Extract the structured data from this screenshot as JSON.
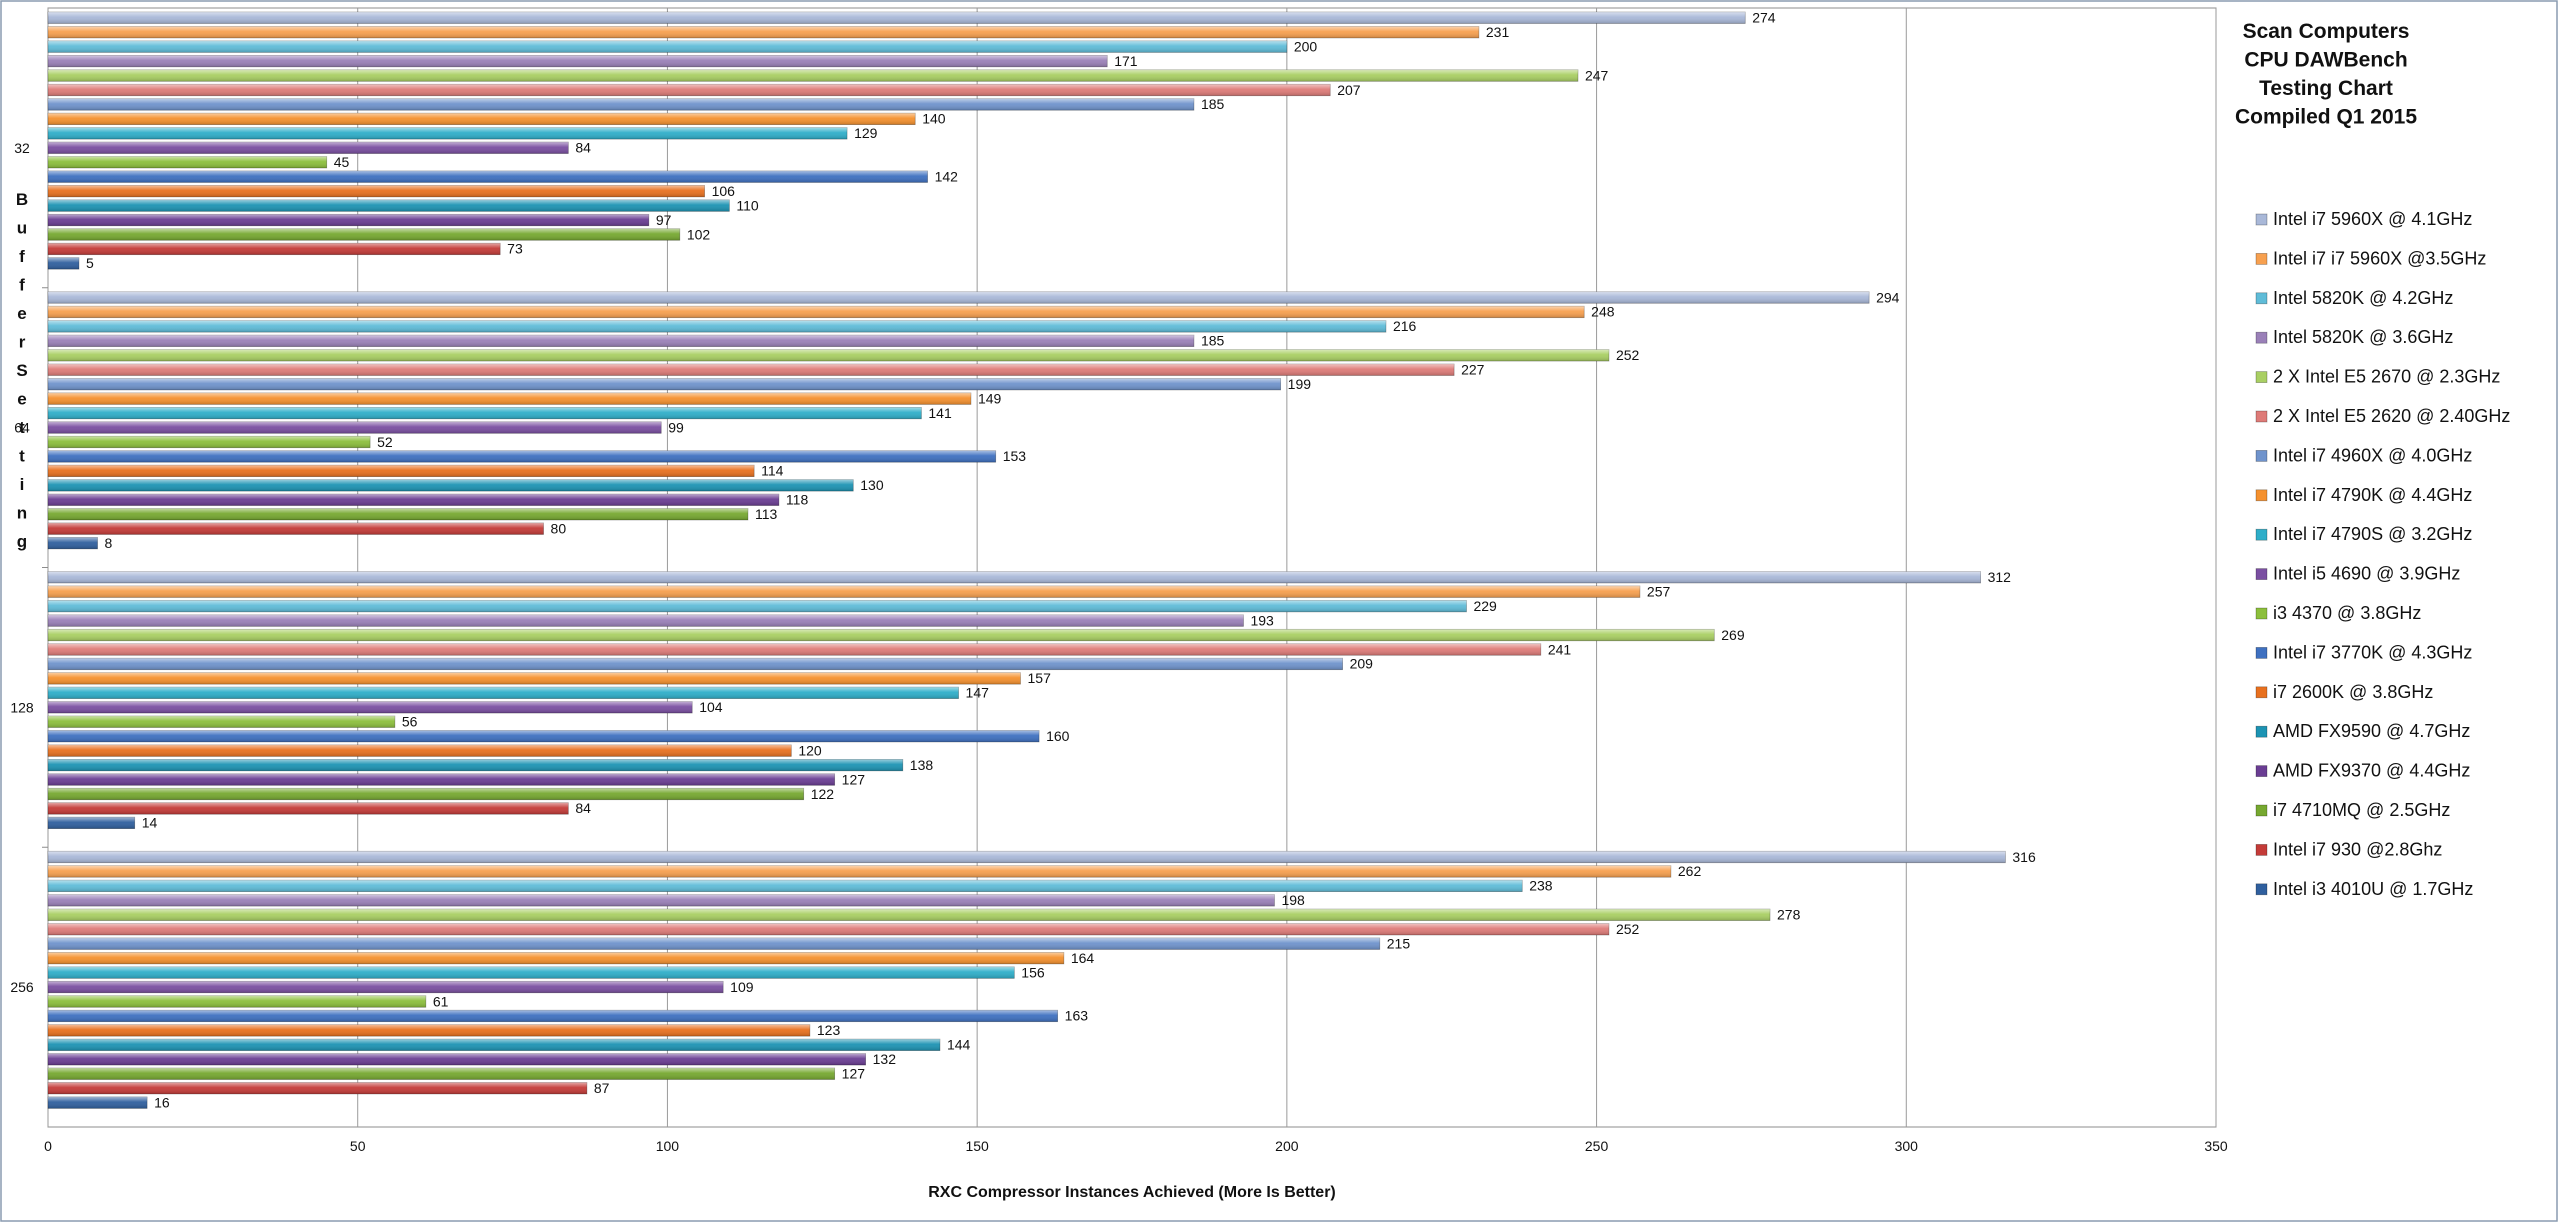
{
  "chart_data": {
    "type": "bar",
    "orientation": "horizontal",
    "title_lines": [
      "Scan Computers",
      "CPU DAWBench",
      "Testing Chart",
      "Compiled Q1 2015"
    ],
    "xlabel": "RXC Compressor Instances Achieved (More Is Better)",
    "ylabel": "Buffer Setting",
    "xlim": [
      0,
      350
    ],
    "xticks": [
      0,
      50,
      100,
      150,
      200,
      250,
      300,
      350
    ],
    "grid": true,
    "legend_position": "right",
    "categories": [
      "32",
      "64",
      "128",
      "256"
    ],
    "series": [
      {
        "name": "Intel i7 5960X @ 4.1GHz",
        "color": "#a9b8d8",
        "values": [
          274,
          294,
          312,
          316
        ]
      },
      {
        "name": "Intel i7 i7 5960X @3.5GHz",
        "color": "#f7a04f",
        "values": [
          231,
          248,
          257,
          262
        ]
      },
      {
        "name": "Intel 5820K @ 4.2GHz",
        "color": "#5fbcd8",
        "values": [
          200,
          216,
          229,
          238
        ]
      },
      {
        "name": "Intel 5820K @ 3.6GHz",
        "color": "#9a80b8",
        "values": [
          171,
          185,
          193,
          198
        ]
      },
      {
        "name": "2 X Intel E5 2670 @ 2.3GHz",
        "color": "#a9cf63",
        "values": [
          247,
          252,
          269,
          278
        ]
      },
      {
        "name": "2 X Intel E5 2620 @ 2.40GHz",
        "color": "#de7b78",
        "values": [
          207,
          227,
          241,
          252
        ]
      },
      {
        "name": "Intel i7 4960X @ 4.0GHz",
        "color": "#6f93cc",
        "values": [
          185,
          199,
          209,
          215
        ]
      },
      {
        "name": "Intel i7 4790K @ 4.4GHz",
        "color": "#f5912e",
        "values": [
          140,
          149,
          157,
          164
        ]
      },
      {
        "name": "Intel i7 4790S @ 3.2GHz",
        "color": "#2eaec9",
        "values": [
          129,
          141,
          147,
          156
        ]
      },
      {
        "name": "Intel i5 4690 @ 3.9GHz",
        "color": "#7a4fa1",
        "values": [
          84,
          99,
          104,
          109
        ]
      },
      {
        "name": "i3 4370 @ 3.8GHz",
        "color": "#8cbf3c",
        "values": [
          45,
          52,
          56,
          61
        ]
      },
      {
        "name": "Intel i7 3770K @ 4.3GHz",
        "color": "#3e70c0",
        "values": [
          142,
          153,
          160,
          163
        ]
      },
      {
        "name": "i7 2600K @ 3.8GHz",
        "color": "#e8701e",
        "values": [
          106,
          114,
          120,
          123
        ]
      },
      {
        "name": "AMD FX9590 @ 4.7GHz",
        "color": "#1c93b3",
        "values": [
          110,
          130,
          138,
          144
        ]
      },
      {
        "name": "AMD FX9370 @ 4.4GHz",
        "color": "#6a3d93",
        "values": [
          97,
          118,
          127,
          132
        ]
      },
      {
        "name": "i7 4710MQ @ 2.5GHz",
        "color": "#76a830",
        "values": [
          102,
          113,
          122,
          127
        ]
      },
      {
        "name": "Intel i7 930 @2.8Ghz",
        "color": "#c43b38",
        "values": [
          73,
          80,
          84,
          87
        ]
      },
      {
        "name": "Intel i3 4010U @ 1.7GHz",
        "color": "#2f5f9e",
        "values": [
          5,
          8,
          14,
          16
        ]
      }
    ]
  }
}
